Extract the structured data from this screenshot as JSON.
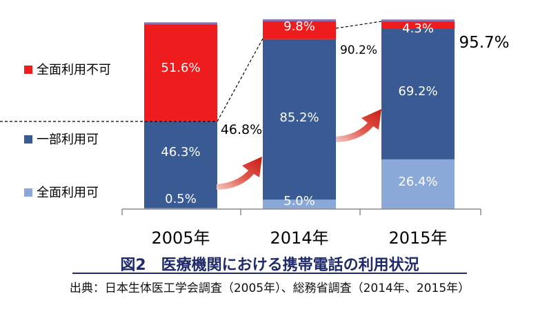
{
  "chart_data": {
    "type": "bar",
    "stacked": true,
    "title": "図2　医療機関における携帯電話の利用状況",
    "source": "出典：日本生体医工学会調査（2005年）、総務省調査（2014年、2015年）",
    "categories": [
      "2005年",
      "2014年",
      "2015年"
    ],
    "series": [
      {
        "name": "全面利用可",
        "color": "#8aa8d8",
        "values": [
          0.5,
          5.0,
          26.4
        ],
        "labels": [
          "0.5%",
          "5.0%",
          "26.4%"
        ]
      },
      {
        "name": "一部利用可",
        "color": "#3a5a94",
        "values": [
          46.3,
          85.2,
          69.2
        ],
        "labels": [
          "46.3%",
          "85.2%",
          "69.2%"
        ]
      },
      {
        "name": "全面利用不可",
        "color": "#ee1c1c",
        "values": [
          51.6,
          9.8,
          4.3
        ],
        "labels": [
          "51.6%",
          "9.8%",
          "4.3%"
        ]
      }
    ],
    "annotations": [
      "46.8%",
      "90.2%",
      "95.7%"
    ],
    "ylim": [
      0,
      100
    ]
  }
}
